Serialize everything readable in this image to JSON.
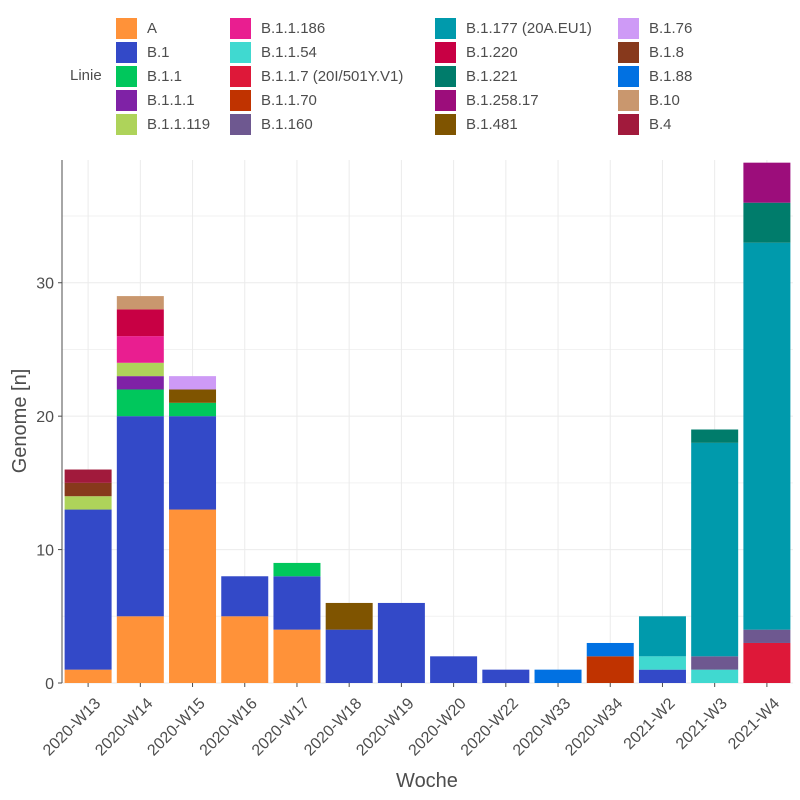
{
  "chart_data": {
    "type": "bar",
    "stacked": true,
    "title": "",
    "xlabel": "Woche",
    "ylabel": "Genome [n]",
    "ylim": [
      0,
      39.2
    ],
    "yticks": [
      0,
      10,
      20,
      30
    ],
    "grid": true,
    "legend_title": "Linie",
    "legend_position": "top",
    "categories": [
      "2020-W13",
      "2020-W14",
      "2020-W15",
      "2020-W16",
      "2020-W17",
      "2020-W18",
      "2020-W19",
      "2020-W20",
      "2020-W22",
      "2020-W33",
      "2020-W34",
      "2021-W2",
      "2021-W3",
      "2021-W4"
    ],
    "series": [
      {
        "name": "A",
        "color": "#FF9239",
        "values": [
          1,
          5,
          13,
          5,
          4,
          0,
          0,
          0,
          0,
          0,
          0,
          0,
          0,
          0
        ]
      },
      {
        "name": "B.1",
        "color": "#3349C8",
        "values": [
          12,
          15,
          7,
          3,
          4,
          4,
          6,
          2,
          1,
          0,
          0,
          1,
          0,
          0
        ]
      },
      {
        "name": "B.1.1",
        "color": "#00C75C",
        "values": [
          0,
          2,
          1,
          0,
          1,
          0,
          0,
          0,
          0,
          0,
          0,
          0,
          0,
          0
        ]
      },
      {
        "name": "B.1.1.1",
        "color": "#7F22A6",
        "values": [
          0,
          1,
          0,
          0,
          0,
          0,
          0,
          0,
          0,
          0,
          0,
          0,
          0,
          0
        ]
      },
      {
        "name": "B.1.1.119",
        "color": "#AED35A",
        "values": [
          1,
          1,
          0,
          0,
          0,
          0,
          0,
          0,
          0,
          0,
          0,
          0,
          0,
          0
        ]
      },
      {
        "name": "B.1.1.186",
        "color": "#E91E90",
        "values": [
          0,
          2,
          0,
          0,
          0,
          0,
          0,
          0,
          0,
          0,
          0,
          0,
          0,
          0
        ]
      },
      {
        "name": "B.1.1.54",
        "color": "#40D9D0",
        "values": [
          0,
          0,
          0,
          0,
          0,
          0,
          0,
          0,
          0,
          0,
          0,
          1,
          1,
          0
        ]
      },
      {
        "name": "B.1.1.7 (20I/501Y.V1)",
        "color": "#DE1839",
        "values": [
          0,
          0,
          0,
          0,
          0,
          0,
          0,
          0,
          0,
          0,
          0,
          0,
          0,
          3
        ]
      },
      {
        "name": "B.1.1.70",
        "color": "#C03300",
        "values": [
          0,
          0,
          0,
          0,
          0,
          0,
          0,
          0,
          0,
          0,
          2,
          0,
          0,
          0
        ]
      },
      {
        "name": "B.1.160",
        "color": "#6E5890",
        "values": [
          0,
          0,
          0,
          0,
          0,
          0,
          0,
          0,
          0,
          0,
          0,
          0,
          1,
          1
        ]
      },
      {
        "name": "B.1.177 (20A.EU1)",
        "color": "#009AAC",
        "values": [
          0,
          0,
          0,
          0,
          0,
          0,
          0,
          0,
          0,
          0,
          0,
          3,
          16,
          29
        ]
      },
      {
        "name": "B.1.220",
        "color": "#C80044",
        "values": [
          0,
          2,
          0,
          0,
          0,
          0,
          0,
          0,
          0,
          0,
          0,
          0,
          0,
          0
        ]
      },
      {
        "name": "B.1.221",
        "color": "#007C6B",
        "values": [
          0,
          0,
          0,
          0,
          0,
          0,
          0,
          0,
          0,
          0,
          0,
          0,
          1,
          3
        ]
      },
      {
        "name": "B.1.258.17",
        "color": "#9C0D7B",
        "values": [
          0,
          0,
          0,
          0,
          0,
          0,
          0,
          0,
          0,
          0,
          0,
          0,
          0,
          3
        ]
      },
      {
        "name": "B.1.481",
        "color": "#7F5400",
        "values": [
          0,
          0,
          1,
          0,
          0,
          2,
          0,
          0,
          0,
          0,
          0,
          0,
          0,
          0
        ]
      },
      {
        "name": "B.1.76",
        "color": "#CE9AF6",
        "values": [
          0,
          0,
          1,
          0,
          0,
          0,
          0,
          0,
          0,
          0,
          0,
          0,
          0,
          0
        ]
      },
      {
        "name": "B.1.8",
        "color": "#87391C",
        "values": [
          1,
          0,
          0,
          0,
          0,
          0,
          0,
          0,
          0,
          0,
          0,
          0,
          0,
          0
        ]
      },
      {
        "name": "B.1.88",
        "color": "#0171E2",
        "values": [
          0,
          0,
          0,
          0,
          0,
          0,
          0,
          0,
          0,
          1,
          1,
          0,
          0,
          0
        ]
      },
      {
        "name": "B.10",
        "color": "#C9976E",
        "values": [
          0,
          1,
          0,
          0,
          0,
          0,
          0,
          0,
          0,
          0,
          0,
          0,
          0,
          0
        ]
      },
      {
        "name": "B.4",
        "color": "#A11A3C",
        "values": [
          1,
          0,
          0,
          0,
          0,
          0,
          0,
          0,
          0,
          0,
          0,
          0,
          0,
          0
        ]
      }
    ]
  }
}
